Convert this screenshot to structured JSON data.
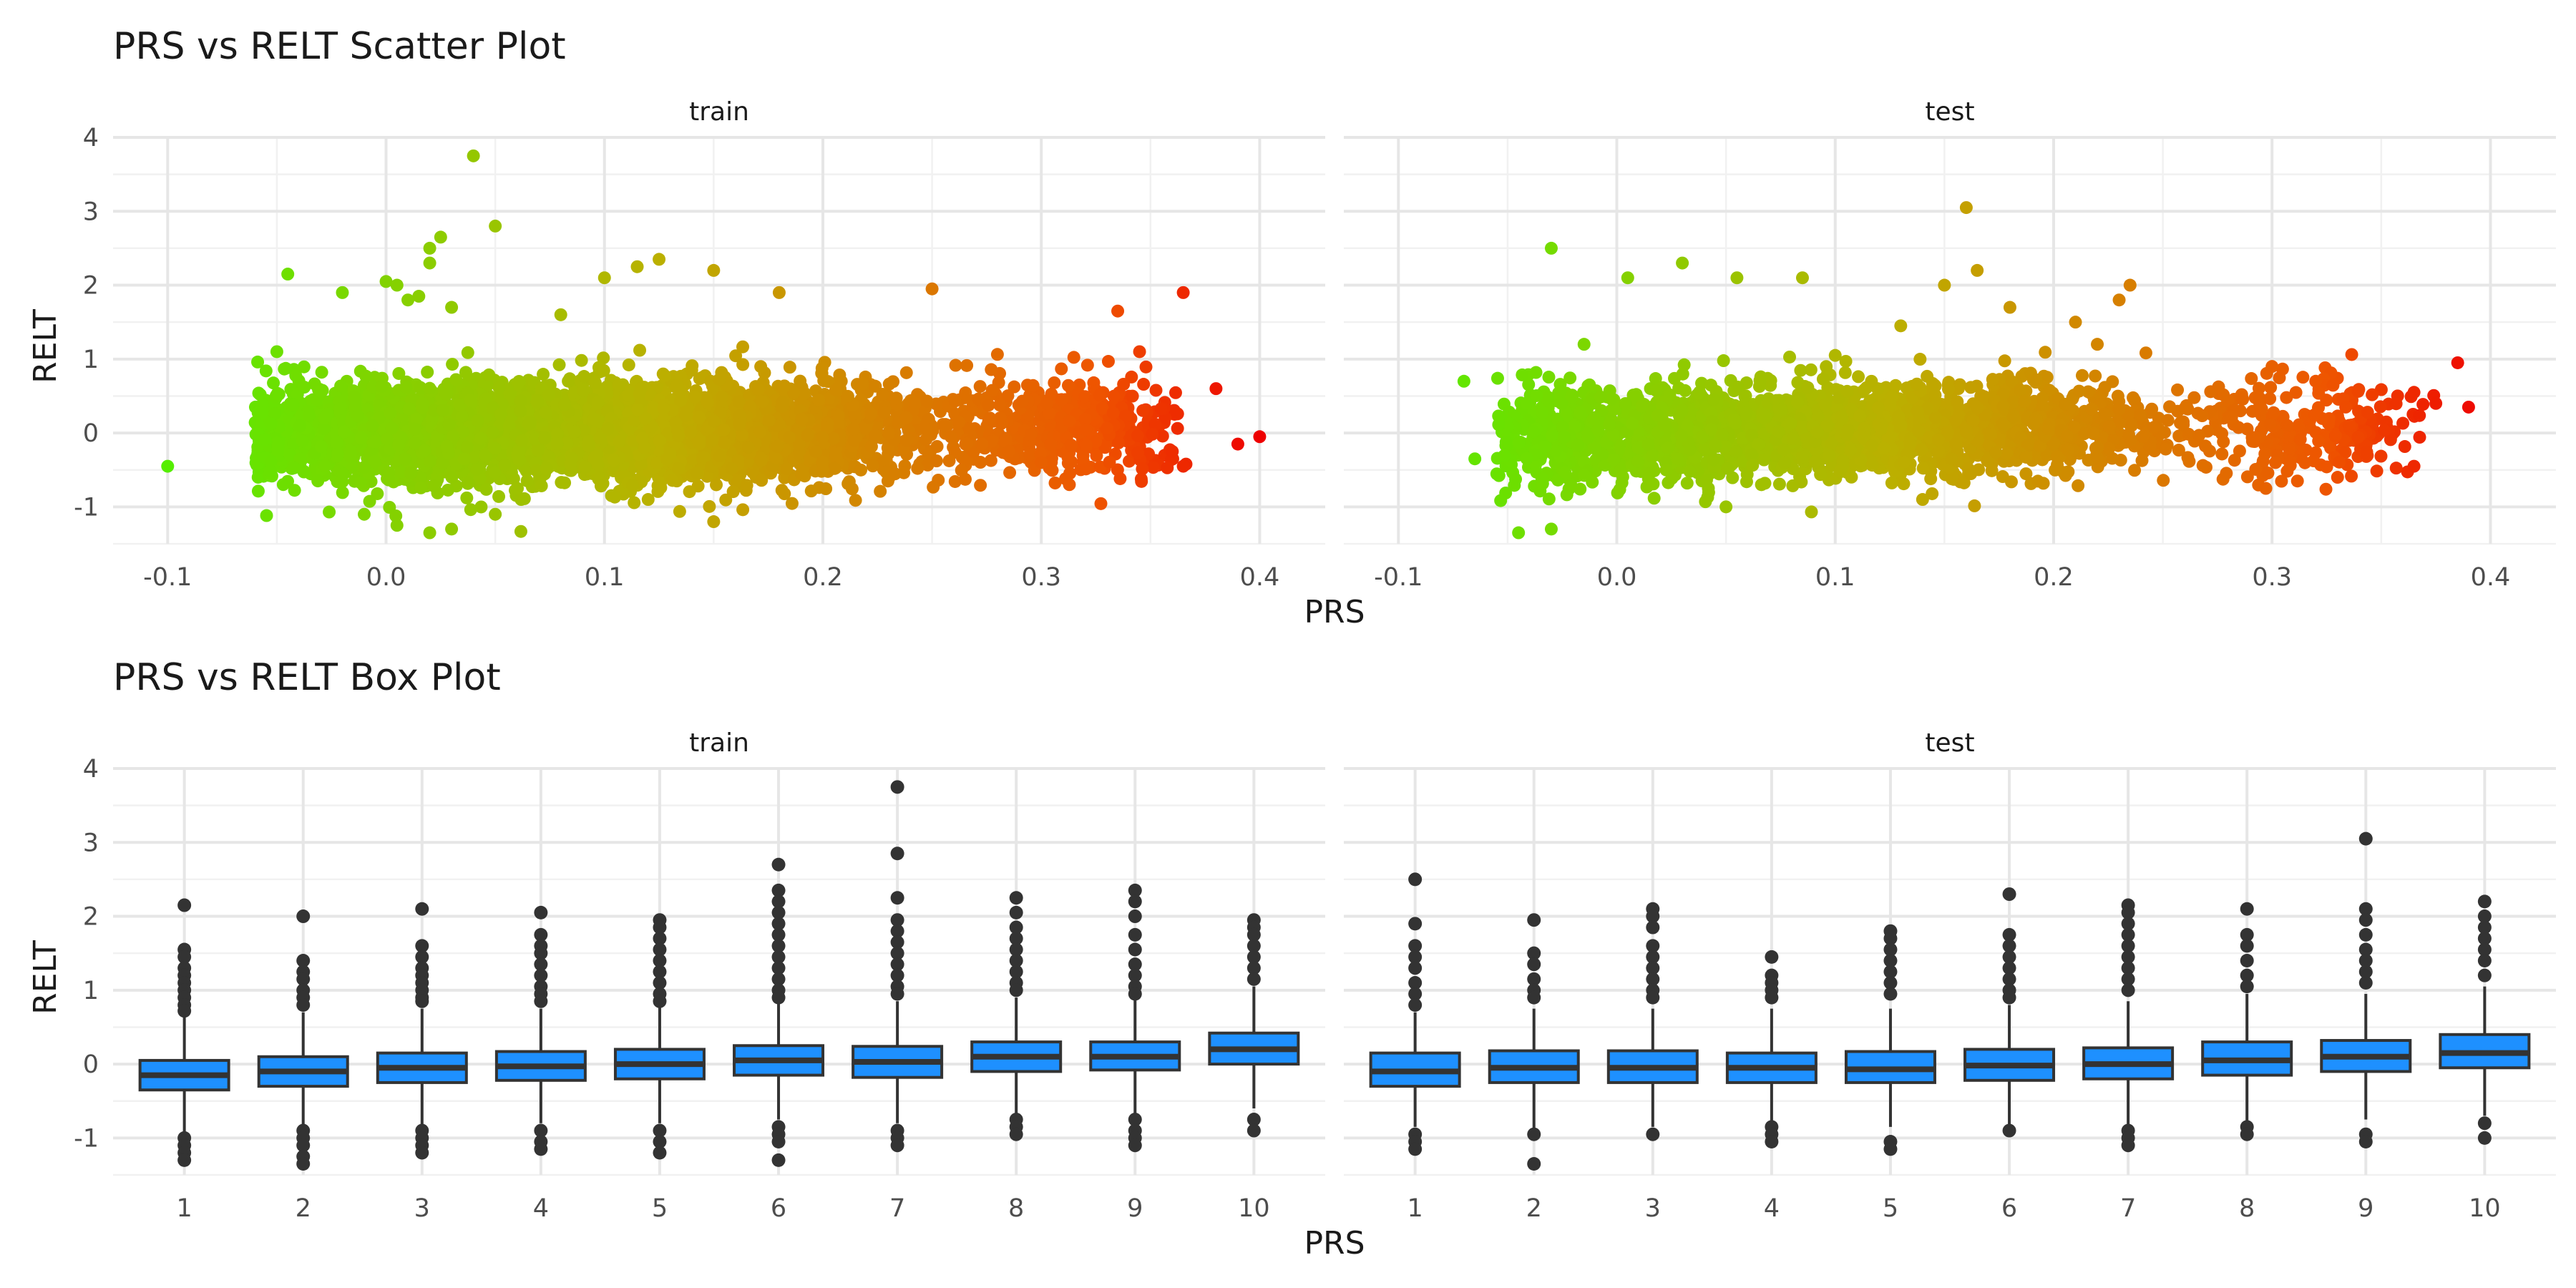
{
  "chart_data": [
    {
      "type": "scatter",
      "title": "PRS vs RELT Scatter Plot",
      "xlabel": "PRS",
      "ylabel": "RELT",
      "facets": [
        "train",
        "test"
      ],
      "xlim": [
        -0.125,
        0.43
      ],
      "ylim": [
        -1.5,
        4.0
      ],
      "xticks": [
        -0.1,
        0.0,
        0.1,
        0.2,
        0.3,
        0.4
      ],
      "xtick_labels": [
        "-0.1",
        "0.0",
        "0.1",
        "0.2",
        "0.3",
        "0.4"
      ],
      "yticks": [
        -1,
        0,
        1,
        2,
        3,
        4
      ],
      "ytick_labels": [
        "-1",
        "0",
        "1",
        "2",
        "3",
        "4"
      ],
      "grid": true,
      "color_scale": {
        "low": "#55ee00",
        "mid": "#bbb000",
        "high": "#ee0000",
        "maps": "PRS"
      },
      "series": [
        {
          "facet": "train",
          "x": [
            -0.1,
            -0.045,
            -0.05,
            -0.02,
            0.0,
            0.005,
            0.01,
            0.015,
            0.02,
            0.02,
            0.025,
            0.03,
            0.04,
            0.05,
            0.08,
            0.1,
            0.115,
            0.125,
            0.15,
            0.18,
            0.25,
            0.335,
            0.365,
            0.38,
            0.39,
            0.4,
            0.365,
            0.36,
            0.345,
            0.03,
            0.05,
            0.12,
            0.15,
            0.005,
            -0.01,
            0.02,
            0.2,
            0.3
          ],
          "y": [
            -0.45,
            2.15,
            1.1,
            1.9,
            2.05,
            2.0,
            1.8,
            1.85,
            2.3,
            2.5,
            2.65,
            1.7,
            3.75,
            2.8,
            1.6,
            2.1,
            2.25,
            2.35,
            2.2,
            1.9,
            1.95,
            1.65,
            1.9,
            0.6,
            -0.15,
            -0.05,
            -0.45,
            -0.25,
            1.1,
            -1.3,
            -1.1,
            -0.9,
            -1.2,
            -1.25,
            -1.1,
            -1.35,
            -0.5,
            -0.4
          ]
        },
        {
          "facet": "test",
          "x": [
            -0.07,
            -0.065,
            -0.03,
            -0.015,
            0.005,
            0.03,
            0.055,
            0.085,
            0.1,
            0.13,
            0.15,
            0.16,
            0.165,
            0.18,
            0.21,
            0.22,
            0.23,
            0.235,
            0.3,
            0.32,
            0.385,
            0.39,
            0.365,
            0.365,
            0.375,
            -0.045,
            -0.03,
            0.05,
            0.14,
            0.33
          ],
          "y": [
            0.7,
            -0.35,
            2.5,
            1.2,
            2.1,
            2.3,
            2.1,
            2.1,
            1.05,
            1.45,
            2.0,
            3.05,
            2.2,
            1.7,
            1.5,
            1.2,
            1.8,
            2.0,
            0.9,
            0.7,
            0.95,
            0.35,
            -0.45,
            0.55,
            0.4,
            -1.35,
            -1.3,
            -1.0,
            -0.9,
            -0.6
          ]
        }
      ]
    },
    {
      "type": "box",
      "title": "PRS vs RELT Box Plot",
      "xlabel": "PRS",
      "ylabel": "RELT",
      "facets": [
        "train",
        "test"
      ],
      "categories": [
        "1",
        "2",
        "3",
        "4",
        "5",
        "6",
        "7",
        "8",
        "9",
        "10"
      ],
      "ylim": [
        -1.5,
        4.0
      ],
      "yticks": [
        -1,
        0,
        1,
        2,
        3,
        4
      ],
      "ytick_labels": [
        "-1",
        "0",
        "1",
        "2",
        "3",
        "4"
      ],
      "grid": true,
      "fill_color": "#1e90ff",
      "series": [
        {
          "facet": "train",
          "boxes": [
            {
              "q1": -0.35,
              "median": -0.15,
              "q3": 0.05,
              "whisker_low": -0.95,
              "whisker_high": 0.65,
              "outliers": [
                2.15,
                1.55,
                1.45,
                1.3,
                1.2,
                1.1,
                1.0,
                0.9,
                0.8,
                0.72,
                -1.0,
                -1.1,
                -1.2,
                -1.3
              ]
            },
            {
              "q1": -0.3,
              "median": -0.1,
              "q3": 0.1,
              "whisker_low": -0.9,
              "whisker_high": 0.7,
              "outliers": [
                2.0,
                1.4,
                1.25,
                1.15,
                1.0,
                0.9,
                0.8,
                -0.9,
                -1.0,
                -1.1,
                -1.25,
                -1.35
              ]
            },
            {
              "q1": -0.25,
              "median": -0.05,
              "q3": 0.15,
              "whisker_low": -0.85,
              "whisker_high": 0.75,
              "outliers": [
                2.1,
                1.6,
                1.45,
                1.3,
                1.2,
                1.1,
                1.0,
                0.9,
                0.85,
                -0.9,
                -1.0,
                -1.1,
                -1.2
              ]
            },
            {
              "q1": -0.22,
              "median": -0.03,
              "q3": 0.17,
              "whisker_low": -0.8,
              "whisker_high": 0.75,
              "outliers": [
                2.05,
                1.75,
                1.6,
                1.5,
                1.35,
                1.2,
                1.05,
                0.95,
                0.85,
                -0.9,
                -1.05,
                -1.15
              ]
            },
            {
              "q1": -0.2,
              "median": 0.0,
              "q3": 0.2,
              "whisker_low": -0.8,
              "whisker_high": 0.8,
              "outliers": [
                1.95,
                1.85,
                1.7,
                1.55,
                1.4,
                1.25,
                1.1,
                0.95,
                0.85,
                -0.9,
                -1.05,
                -1.2
              ]
            },
            {
              "q1": -0.15,
              "median": 0.05,
              "q3": 0.25,
              "whisker_low": -0.75,
              "whisker_high": 0.85,
              "outliers": [
                2.7,
                2.35,
                2.2,
                2.05,
                1.9,
                1.75,
                1.6,
                1.45,
                1.3,
                1.15,
                1.0,
                0.9,
                -0.85,
                -0.95,
                -1.05,
                -1.3
              ]
            },
            {
              "q1": -0.18,
              "median": 0.03,
              "q3": 0.24,
              "whisker_low": -0.8,
              "whisker_high": 0.85,
              "outliers": [
                3.75,
                2.85,
                2.25,
                1.95,
                1.8,
                1.65,
                1.5,
                1.35,
                1.2,
                1.05,
                0.95,
                -0.9,
                -1.0,
                -1.1
              ]
            },
            {
              "q1": -0.1,
              "median": 0.1,
              "q3": 0.3,
              "whisker_low": -0.7,
              "whisker_high": 0.9,
              "outliers": [
                2.25,
                2.05,
                1.85,
                1.7,
                1.55,
                1.4,
                1.25,
                1.1,
                1.0,
                -0.75,
                -0.85,
                -0.95
              ]
            },
            {
              "q1": -0.08,
              "median": 0.1,
              "q3": 0.3,
              "whisker_low": -0.7,
              "whisker_high": 0.9,
              "outliers": [
                2.35,
                2.2,
                2.0,
                1.75,
                1.55,
                1.35,
                1.2,
                1.05,
                0.95,
                -0.75,
                -0.9,
                -1.0,
                -1.1
              ]
            },
            {
              "q1": 0.0,
              "median": 0.2,
              "q3": 0.42,
              "whisker_low": -0.6,
              "whisker_high": 1.05,
              "outliers": [
                1.95,
                1.85,
                1.75,
                1.6,
                1.45,
                1.3,
                1.15,
                -0.75,
                -0.9
              ]
            }
          ]
        },
        {
          "facet": "test",
          "boxes": [
            {
              "q1": -0.3,
              "median": -0.1,
              "q3": 0.15,
              "whisker_low": -0.85,
              "whisker_high": 0.7,
              "outliers": [
                2.5,
                1.9,
                1.6,
                1.45,
                1.3,
                1.1,
                0.95,
                0.8,
                -0.95,
                -1.05,
                -1.15
              ]
            },
            {
              "q1": -0.25,
              "median": -0.05,
              "q3": 0.18,
              "whisker_low": -0.9,
              "whisker_high": 0.75,
              "outliers": [
                1.95,
                1.5,
                1.35,
                1.15,
                1.0,
                0.9,
                -0.95,
                -1.35
              ]
            },
            {
              "q1": -0.25,
              "median": -0.05,
              "q3": 0.18,
              "whisker_low": -0.85,
              "whisker_high": 0.75,
              "outliers": [
                2.1,
                2.0,
                1.85,
                1.6,
                1.45,
                1.3,
                1.15,
                1.0,
                0.9,
                -0.95
              ]
            },
            {
              "q1": -0.25,
              "median": -0.05,
              "q3": 0.15,
              "whisker_low": -0.8,
              "whisker_high": 0.75,
              "outliers": [
                1.45,
                1.2,
                1.1,
                1.0,
                0.9,
                -0.85,
                -0.95,
                -1.05
              ]
            },
            {
              "q1": -0.25,
              "median": -0.07,
              "q3": 0.17,
              "whisker_low": -0.85,
              "whisker_high": 0.75,
              "outliers": [
                1.8,
                1.7,
                1.55,
                1.4,
                1.25,
                1.1,
                0.95,
                -1.05,
                -1.15
              ]
            },
            {
              "q1": -0.22,
              "median": -0.02,
              "q3": 0.2,
              "whisker_low": -0.85,
              "whisker_high": 0.8,
              "outliers": [
                2.3,
                1.75,
                1.6,
                1.45,
                1.3,
                1.15,
                1.0,
                0.9,
                -0.9
              ]
            },
            {
              "q1": -0.2,
              "median": 0.0,
              "q3": 0.22,
              "whisker_low": -0.85,
              "whisker_high": 0.85,
              "outliers": [
                2.15,
                2.05,
                1.9,
                1.75,
                1.6,
                1.45,
                1.3,
                1.15,
                1.0,
                -0.9,
                -1.0,
                -1.1
              ]
            },
            {
              "q1": -0.15,
              "median": 0.05,
              "q3": 0.3,
              "whisker_low": -0.8,
              "whisker_high": 0.95,
              "outliers": [
                2.1,
                1.75,
                1.6,
                1.4,
                1.2,
                1.05,
                -0.85,
                -0.95
              ]
            },
            {
              "q1": -0.1,
              "median": 0.1,
              "q3": 0.32,
              "whisker_low": -0.75,
              "whisker_high": 0.95,
              "outliers": [
                3.05,
                2.1,
                1.95,
                1.75,
                1.55,
                1.4,
                1.25,
                1.1,
                -0.95,
                -1.05
              ]
            },
            {
              "q1": -0.05,
              "median": 0.15,
              "q3": 0.4,
              "whisker_low": -0.7,
              "whisker_high": 1.05,
              "outliers": [
                2.2,
                2.0,
                1.85,
                1.7,
                1.55,
                1.4,
                1.2,
                -0.8,
                -1.0
              ]
            }
          ]
        }
      ]
    }
  ]
}
